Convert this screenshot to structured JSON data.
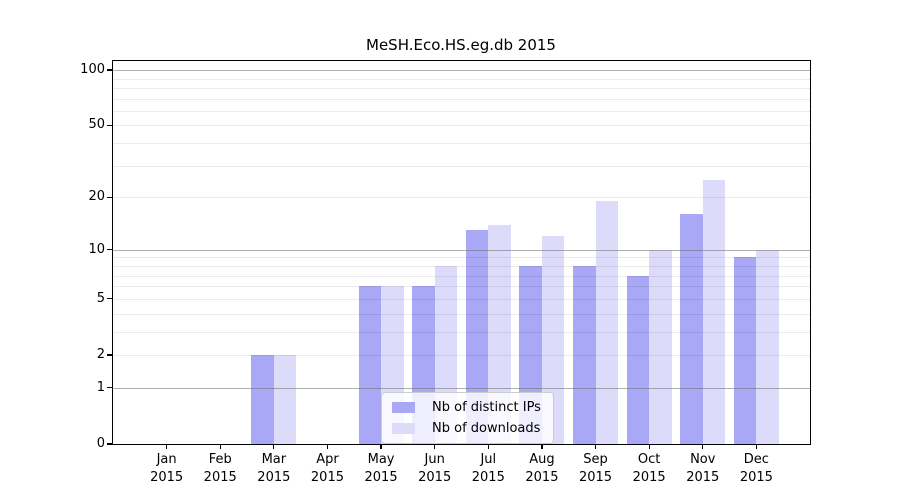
{
  "chart_data": {
    "type": "bar",
    "title": "MeSH.Eco.HS.eg.db 2015",
    "yscale": "log1p",
    "ylim": [
      0,
      112
    ],
    "grid": true,
    "legend_position": "lower-center-inside",
    "categories": [
      {
        "month": "Jan",
        "year": "2015"
      },
      {
        "month": "Feb",
        "year": "2015"
      },
      {
        "month": "Mar",
        "year": "2015"
      },
      {
        "month": "Apr",
        "year": "2015"
      },
      {
        "month": "May",
        "year": "2015"
      },
      {
        "month": "Jun",
        "year": "2015"
      },
      {
        "month": "Jul",
        "year": "2015"
      },
      {
        "month": "Aug",
        "year": "2015"
      },
      {
        "month": "Sep",
        "year": "2015"
      },
      {
        "month": "Oct",
        "year": "2015"
      },
      {
        "month": "Nov",
        "year": "2015"
      },
      {
        "month": "Dec",
        "year": "2015"
      }
    ],
    "series": [
      {
        "name": "Nb of distinct IPs",
        "color": "#a8a8f7",
        "values": [
          0,
          0,
          2,
          0,
          6,
          6,
          13,
          8,
          8,
          7,
          16,
          9
        ]
      },
      {
        "name": "Nb of downloads",
        "color": "#dcdcfa",
        "values": [
          0,
          0,
          2,
          0,
          6,
          8,
          14,
          12,
          19,
          10,
          25,
          10
        ]
      }
    ],
    "yticks": [
      0,
      1,
      2,
      5,
      10,
      20,
      50,
      100
    ],
    "minor_gridlines": [
      3,
      4,
      6,
      7,
      8,
      9,
      30,
      40,
      60,
      70,
      80,
      90
    ],
    "emphasized_gridlines": [
      1,
      10,
      100
    ],
    "grid_color_major": "rgba(110,110,110,0.55)",
    "grid_color_minor": "rgba(0,0,0,0.08)"
  }
}
